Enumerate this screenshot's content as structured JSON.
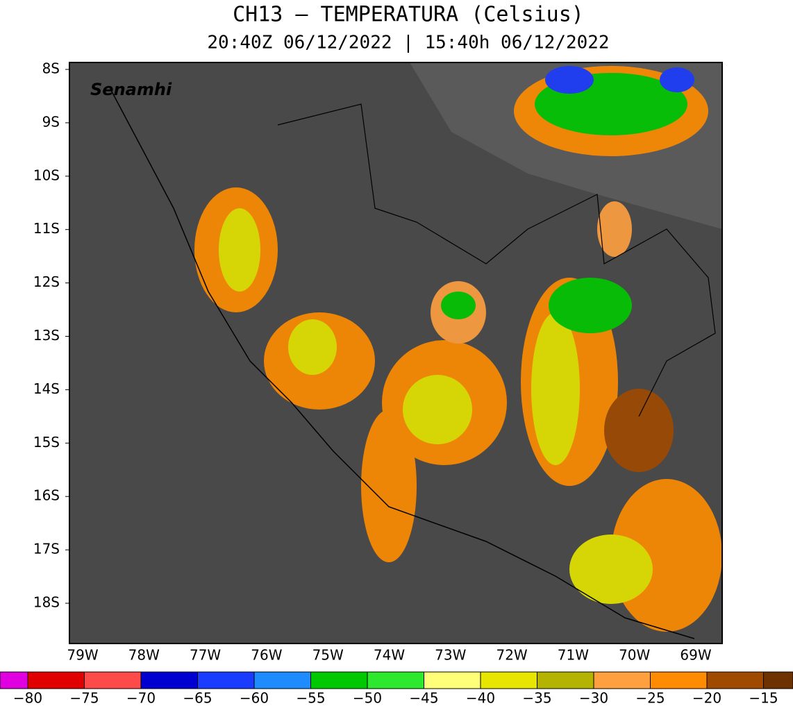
{
  "header": {
    "title": "CH13 – TEMPERATURA (Celsius)",
    "subtitle": "20:40Z 06/12/2022 | 15:40h 06/12/2022"
  },
  "logo": "Senamhi",
  "map": {
    "lat_labels": [
      "8S",
      "9S",
      "10S",
      "11S",
      "12S",
      "13S",
      "14S",
      "15S",
      "16S",
      "17S",
      "18S"
    ],
    "lon_labels": [
      "79W",
      "78W",
      "77W",
      "76W",
      "75W",
      "74W",
      "73W",
      "72W",
      "71W",
      "70W",
      "69W"
    ]
  },
  "colorbar": {
    "colors": [
      "#e000e0",
      "#e00000",
      "#ff4a4a",
      "#0000d0",
      "#1a3cff",
      "#1e8cff",
      "#00c800",
      "#2ee82e",
      "#ffff78",
      "#e6e600",
      "#b4b400",
      "#ffa040",
      "#ff8c00",
      "#a04a00",
      "#6e3200"
    ],
    "labels": [
      "−80",
      "−75",
      "−70",
      "−65",
      "−60",
      "−55",
      "−50",
      "−45",
      "−40",
      "−35",
      "−30",
      "−25",
      "−20",
      "−15"
    ]
  }
}
